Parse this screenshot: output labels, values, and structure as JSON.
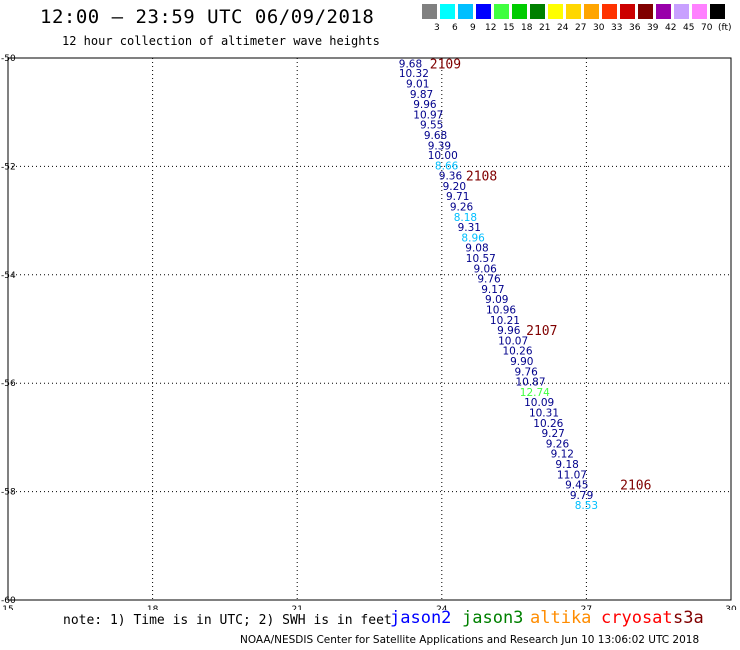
{
  "header": {
    "title": "12:00 – 23:59 UTC 06/09/2018",
    "subtitle": "12 hour collection of altimeter wave heights"
  },
  "legend": {
    "unit_label": "(ft)",
    "swatches": [
      {
        "color": "#808080",
        "label": "3"
      },
      {
        "color": "#00ffff",
        "label": "6"
      },
      {
        "color": "#00bfff",
        "label": "9"
      },
      {
        "color": "#0000ff",
        "label": "12"
      },
      {
        "color": "#40ff40",
        "label": "15"
      },
      {
        "color": "#00cc00",
        "label": "18"
      },
      {
        "color": "#008000",
        "label": "21"
      },
      {
        "color": "#ffff00",
        "label": "24"
      },
      {
        "color": "#ffd700",
        "label": "27"
      },
      {
        "color": "#ffa500",
        "label": "30"
      },
      {
        "color": "#ff3300",
        "label": "33"
      },
      {
        "color": "#cc0000",
        "label": "36"
      },
      {
        "color": "#800000",
        "label": "39"
      },
      {
        "color": "#9900aa",
        "label": "42"
      },
      {
        "color": "#c8a0ff",
        "label": "45"
      },
      {
        "color": "#ff80ff",
        "label": "70"
      },
      {
        "color": "#000000",
        "label": ""
      }
    ]
  },
  "note": "note: 1) Time is in UTC; 2) SWH is in feet",
  "satellites": [
    {
      "name": "jason2",
      "color": "#0000ff"
    },
    {
      "name": "jason3",
      "color": "#008000"
    },
    {
      "name": "altika",
      "color": "#ff8c00"
    },
    {
      "name": "cryosat",
      "color": "#ff0000"
    },
    {
      "name": "s3a",
      "color": "#800000"
    }
  ],
  "footer": "NOAA/NESDIS Center for Satellite Applications and Research   Jun 10 13:06:02 UTC 2018",
  "chart_data": {
    "type": "scatter",
    "title": "12:00 – 23:59 UTC 06/09/2018",
    "subtitle": "12 hour collection of altimeter wave heights",
    "xlim": [
      15,
      30
    ],
    "ylim": [
      -60,
      -50
    ],
    "x_ticks": [
      15,
      18,
      21,
      24,
      27,
      30
    ],
    "y_ticks": [
      -50,
      -52,
      -54,
      -56,
      -58,
      -60
    ],
    "grid": true,
    "colors": {
      "dark": "#00008b",
      "light": "#00bfff",
      "green": "#40ff40",
      "time": "#800000"
    },
    "points": [
      {
        "x": 23.35,
        "y": -50.1,
        "label": "9.68",
        "c": "dark"
      },
      {
        "x": 23.42,
        "y": -50.28,
        "label": "10.32",
        "c": "dark"
      },
      {
        "x": 23.5,
        "y": -50.47,
        "label": "9.01",
        "c": "dark"
      },
      {
        "x": 23.58,
        "y": -50.66,
        "label": "9.87",
        "c": "dark"
      },
      {
        "x": 23.65,
        "y": -50.85,
        "label": "9.96",
        "c": "dark"
      },
      {
        "x": 23.72,
        "y": -51.04,
        "label": "10.97",
        "c": "dark"
      },
      {
        "x": 23.79,
        "y": -51.23,
        "label": "9.55",
        "c": "dark"
      },
      {
        "x": 23.87,
        "y": -51.42,
        "label": "9.68",
        "c": "dark"
      },
      {
        "x": 23.95,
        "y": -51.61,
        "label": "9.39",
        "c": "dark"
      },
      {
        "x": 24.02,
        "y": -51.79,
        "label": "10.00",
        "c": "dark"
      },
      {
        "x": 24.1,
        "y": -51.98,
        "label": "8.66",
        "c": "light"
      },
      {
        "x": 24.18,
        "y": -52.17,
        "label": "9.36",
        "c": "dark"
      },
      {
        "x": 24.26,
        "y": -52.36,
        "label": "9.20",
        "c": "dark"
      },
      {
        "x": 24.33,
        "y": -52.55,
        "label": "9.71",
        "c": "dark"
      },
      {
        "x": 24.41,
        "y": -52.74,
        "label": "9.26",
        "c": "dark"
      },
      {
        "x": 24.49,
        "y": -52.93,
        "label": "8.18",
        "c": "light"
      },
      {
        "x": 24.57,
        "y": -53.12,
        "label": "9.31",
        "c": "dark"
      },
      {
        "x": 24.65,
        "y": -53.31,
        "label": "8.96",
        "c": "light"
      },
      {
        "x": 24.73,
        "y": -53.5,
        "label": "9.08",
        "c": "dark"
      },
      {
        "x": 24.81,
        "y": -53.69,
        "label": "10.57",
        "c": "dark"
      },
      {
        "x": 24.9,
        "y": -53.88,
        "label": "9.06",
        "c": "dark"
      },
      {
        "x": 24.98,
        "y": -54.07,
        "label": "9.76",
        "c": "dark"
      },
      {
        "x": 25.06,
        "y": -54.26,
        "label": "9.17",
        "c": "dark"
      },
      {
        "x": 25.14,
        "y": -54.45,
        "label": "9.09",
        "c": "dark"
      },
      {
        "x": 25.23,
        "y": -54.64,
        "label": "10.96",
        "c": "dark"
      },
      {
        "x": 25.31,
        "y": -54.83,
        "label": "10.21",
        "c": "dark"
      },
      {
        "x": 25.39,
        "y": -55.02,
        "label": "9.96",
        "c": "dark"
      },
      {
        "x": 25.48,
        "y": -55.21,
        "label": "10.07",
        "c": "dark"
      },
      {
        "x": 25.57,
        "y": -55.4,
        "label": "10.26",
        "c": "dark"
      },
      {
        "x": 25.66,
        "y": -55.59,
        "label": "9.90",
        "c": "dark"
      },
      {
        "x": 25.75,
        "y": -55.78,
        "label": "9.76",
        "c": "dark"
      },
      {
        "x": 25.84,
        "y": -55.97,
        "label": "10.87",
        "c": "dark"
      },
      {
        "x": 25.93,
        "y": -56.16,
        "label": "12.74",
        "c": "green"
      },
      {
        "x": 26.02,
        "y": -56.35,
        "label": "10.09",
        "c": "dark"
      },
      {
        "x": 26.12,
        "y": -56.54,
        "label": "10.31",
        "c": "dark"
      },
      {
        "x": 26.21,
        "y": -56.73,
        "label": "10.26",
        "c": "dark"
      },
      {
        "x": 26.31,
        "y": -56.92,
        "label": "9.27",
        "c": "dark"
      },
      {
        "x": 26.4,
        "y": -57.11,
        "label": "9.26",
        "c": "dark"
      },
      {
        "x": 26.5,
        "y": -57.3,
        "label": "9.12",
        "c": "dark"
      },
      {
        "x": 26.6,
        "y": -57.49,
        "label": "9.18",
        "c": "dark"
      },
      {
        "x": 26.7,
        "y": -57.68,
        "label": "11.07",
        "c": "dark"
      },
      {
        "x": 26.8,
        "y": -57.87,
        "label": "9.45",
        "c": "dark"
      },
      {
        "x": 26.9,
        "y": -58.06,
        "label": "9.79",
        "c": "dark"
      },
      {
        "x": 27.0,
        "y": -58.25,
        "label": "8.53",
        "c": "light"
      }
    ],
    "time_labels": [
      {
        "x": 23.75,
        "y": -50.1,
        "label": "2109"
      },
      {
        "x": 24.5,
        "y": -52.17,
        "label": "2108"
      },
      {
        "x": 25.75,
        "y": -55.02,
        "label": "2107"
      },
      {
        "x": 27.7,
        "y": -57.87,
        "label": "2106"
      }
    ]
  }
}
